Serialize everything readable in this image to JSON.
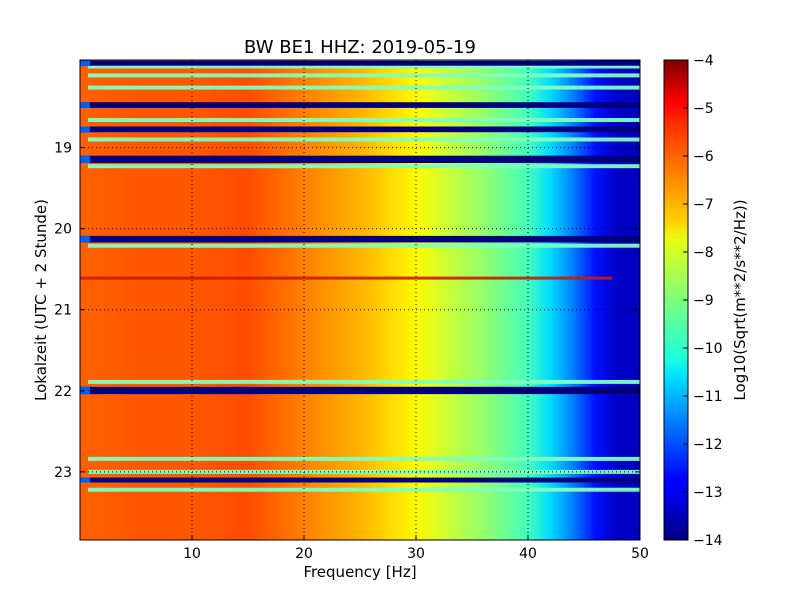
{
  "chart_data": {
    "type": "heatmap",
    "title": "BW BE1 HHZ: 2019-05-19",
    "xlabel": "Frequency [Hz]",
    "ylabel": "Lokalzeit (UTC + 2 Stunde)",
    "xlim": [
      0,
      50
    ],
    "ylim": [
      17.92,
      23.84
    ],
    "y_inverted": true,
    "x_ticks": [
      10,
      20,
      30,
      40,
      50
    ],
    "y_ticks": [
      19,
      20,
      21,
      22,
      23
    ],
    "grid": true,
    "colormap": "jet",
    "colorbar": {
      "label": "Log10(Sqrt(m**2/s**2/Hz))",
      "range": [
        -14,
        -4
      ],
      "ticks": [
        -4,
        -5,
        -6,
        -7,
        -8,
        -9,
        -10,
        -11,
        -12,
        -13,
        -14
      ]
    },
    "spectral_profile": {
      "frequency_hz": [
        0,
        5,
        10,
        15,
        20,
        25,
        30,
        33,
        36,
        40,
        42,
        44,
        46,
        48,
        50
      ],
      "log10_amplitude": [
        -6.2,
        -6.1,
        -6.1,
        -6.0,
        -6.5,
        -7.0,
        -7.7,
        -8.3,
        -8.8,
        -9.6,
        -10.6,
        -11.5,
        -12.6,
        -13.3,
        -13.4
      ]
    },
    "gaps_hours": [
      [
        17.93,
        17.99
      ],
      [
        18.44,
        18.51
      ],
      [
        18.74,
        18.81
      ],
      [
        19.1,
        19.19
      ],
      [
        20.09,
        20.17
      ],
      [
        21.95,
        22.04
      ],
      [
        23.07,
        23.13
      ]
    ],
    "low_level_lines_hours": [
      18.0,
      18.11,
      18.26,
      18.66,
      18.9,
      19.23,
      20.21,
      21.89,
      22.84,
      23.0,
      23.22
    ],
    "disturbance_lines_hours": [
      20.61
    ]
  }
}
